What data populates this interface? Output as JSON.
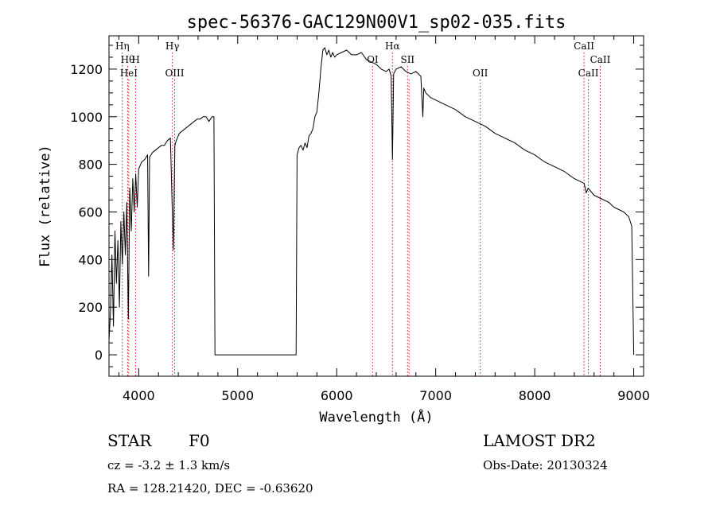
{
  "chart_data": {
    "type": "line",
    "title": "spec-56376-GAC129N00V1_sp02-035.fits",
    "xlabel": "Wavelength (Å)",
    "ylabel": "Flux (relative)",
    "xlim": [
      3700,
      9100
    ],
    "ylim": [
      -90,
      1340
    ],
    "xticks": [
      4000,
      5000,
      6000,
      7000,
      8000,
      9000
    ],
    "yticks": [
      0,
      200,
      400,
      600,
      800,
      1000,
      1200
    ],
    "grid": false,
    "series": [
      {
        "x": [
          3700,
          3715,
          3730,
          3745,
          3760,
          3775,
          3790,
          3805,
          3820,
          3835,
          3850,
          3865,
          3880,
          3895,
          3910,
          3925,
          3940,
          3955,
          3970,
          3985,
          4000,
          4030,
          4060,
          4090,
          4100,
          4110,
          4140,
          4170,
          4200,
          4230,
          4260,
          4290,
          4320,
          4340,
          4350,
          4365,
          4380,
          4410,
          4440,
          4470,
          4500,
          4530,
          4560,
          4590,
          4620,
          4650,
          4680,
          4710,
          4740,
          4760,
          4770,
          4800,
          4900,
          5000,
          5100,
          5200,
          5300,
          5400,
          5500,
          5590,
          5600,
          5620,
          5640,
          5660,
          5680,
          5700,
          5720,
          5740,
          5760,
          5780,
          5800,
          5820,
          5840,
          5860,
          5880,
          5900,
          5920,
          5940,
          5960,
          5980,
          6000,
          6050,
          6100,
          6150,
          6200,
          6250,
          6300,
          6350,
          6400,
          6450,
          6500,
          6530,
          6550,
          6563,
          6575,
          6600,
          6650,
          6700,
          6750,
          6800,
          6850,
          6870,
          6880,
          6900,
          6950,
          7000,
          7050,
          7100,
          7150,
          7200,
          7300,
          7400,
          7500,
          7600,
          7700,
          7800,
          7900,
          8000,
          8100,
          8200,
          8300,
          8400,
          8500,
          8520,
          8540,
          8560,
          8600,
          8650,
          8700,
          8750,
          8800,
          8850,
          8900,
          8950,
          8980,
          9000
        ],
        "y": [
          60,
          180,
          420,
          120,
          520,
          300,
          480,
          200,
          560,
          380,
          600,
          420,
          640,
          150,
          700,
          520,
          740,
          600,
          760,
          620,
          780,
          810,
          820,
          840,
          330,
          830,
          850,
          860,
          870,
          880,
          880,
          900,
          910,
          600,
          440,
          880,
          900,
          930,
          940,
          950,
          960,
          970,
          980,
          990,
          990,
          1000,
          1000,
          980,
          1000,
          1000,
          0,
          0,
          0,
          0,
          0,
          0,
          0,
          0,
          0,
          0,
          840,
          870,
          880,
          860,
          890,
          870,
          920,
          930,
          950,
          1000,
          1020,
          1100,
          1200,
          1280,
          1290,
          1260,
          1280,
          1250,
          1270,
          1250,
          1260,
          1270,
          1280,
          1260,
          1260,
          1270,
          1240,
          1230,
          1220,
          1200,
          1190,
          1200,
          1170,
          820,
          1180,
          1200,
          1210,
          1190,
          1180,
          1190,
          1170,
          1000,
          1120,
          1100,
          1080,
          1070,
          1060,
          1050,
          1040,
          1030,
          1000,
          980,
          960,
          930,
          910,
          890,
          860,
          840,
          810,
          790,
          770,
          740,
          720,
          680,
          700,
          690,
          670,
          660,
          650,
          640,
          620,
          610,
          600,
          580,
          540,
          0
        ]
      }
    ],
    "lines": [
      {
        "x": 3835,
        "label": "Hη",
        "row": 1
      },
      {
        "x": 3889,
        "label": "Hθ",
        "row": 2
      },
      {
        "x": 3970,
        "label": "H",
        "row": 2
      },
      {
        "x": 3900,
        "label": "HeI",
        "row": 3
      },
      {
        "x": 4340,
        "label": "Hγ",
        "row": 1
      },
      {
        "x": 4363,
        "label": "OIII",
        "row": 3
      },
      {
        "x": 6363,
        "label": "OI",
        "row": 2
      },
      {
        "x": 6563,
        "label": "Hα",
        "row": 1
      },
      {
        "x": 6716,
        "label": "SII",
        "row": 2
      },
      {
        "x": 6731,
        "label": "",
        "row": 3
      },
      {
        "x": 7450,
        "label": "OII",
        "row": 3
      },
      {
        "x": 8498,
        "label": "CaII",
        "row": 1
      },
      {
        "x": 8542,
        "label": "CaII",
        "row": 3
      },
      {
        "x": 8662,
        "label": "CaII",
        "row": 2
      }
    ]
  },
  "info": {
    "object_type": "STAR",
    "subclass": "F0",
    "redshift": "cz = -3.2 ± 1.3 km/s",
    "coords": "RA = 128.21420, DEC =  -0.63620",
    "survey": "LAMOST DR2",
    "obs_date": "Obs-Date: 20130324"
  }
}
